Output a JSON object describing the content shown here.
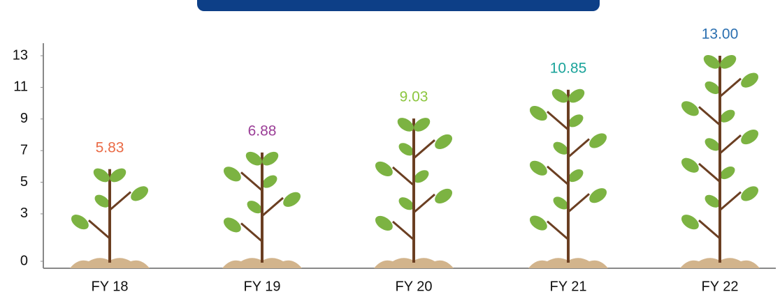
{
  "chart_data": {
    "type": "plant",
    "categories": [
      "FY 18",
      "FY 19",
      "FY 20",
      "FY 21",
      "FY 22"
    ],
    "values": [
      5.83,
      6.88,
      9.03,
      10.85,
      13
    ],
    "value_labels": [
      "5.83",
      "6.88",
      "9.03",
      "10.85",
      "13.00"
    ],
    "label_colors": [
      "#ea6a45",
      "#9b3e97",
      "#8cc63f",
      "#1aa39a",
      "#2a6fb0"
    ],
    "ylim": [
      0,
      13
    ],
    "yticks": [
      0,
      3,
      5,
      7,
      9,
      11,
      13
    ]
  }
}
